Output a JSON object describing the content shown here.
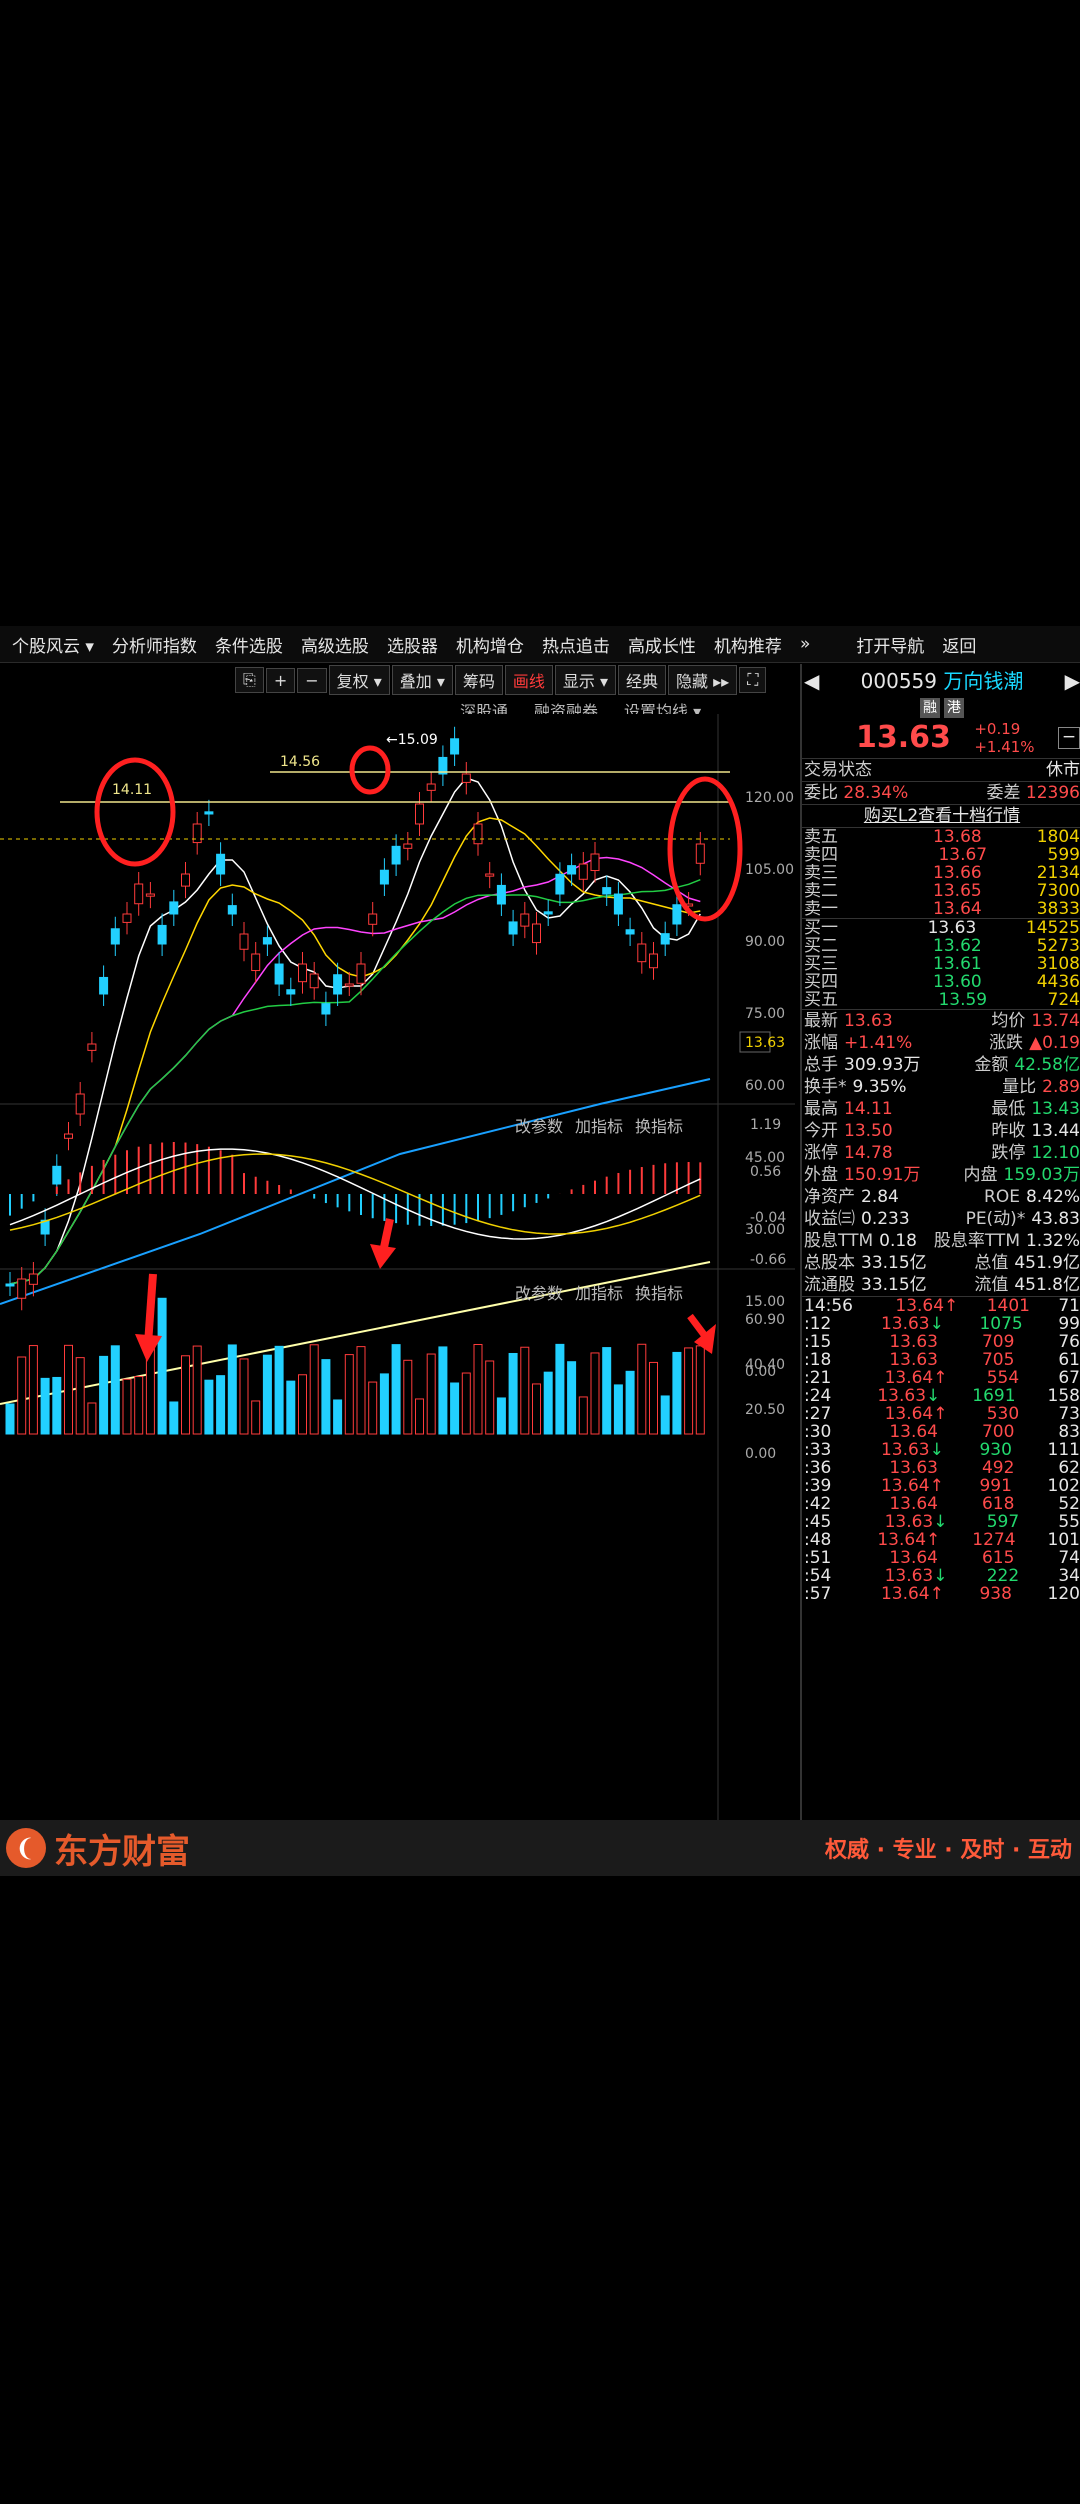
{
  "menu": [
    "个股风云 ▾",
    "分析师指数",
    "条件选股",
    "高级选股",
    "选股器",
    "机构增仓",
    "热点追击",
    "高成长性",
    "机构推荐",
    "»",
    "打开导航",
    "返回"
  ],
  "toolbar": {
    "undo": "⎘",
    "plus": "+",
    "minus": "−",
    "fuquan": "复权 ▾",
    "diejia": "叠加 ▾",
    "chouma": "筹码",
    "huaxian": "画线",
    "xianshi": "显示 ▾",
    "jingdian": "经典",
    "yincang": "隐藏 ▸▸",
    "fullscreen": "⛶"
  },
  "subinfo": [
    "深股通",
    "融资融券",
    "设置均线 ▾"
  ],
  "price_axis": [
    "120.00",
    "105.00",
    "90.00",
    "75.00",
    "60.00",
    "45.00",
    "30.00",
    "15.00",
    "0.00"
  ],
  "current_price_tag": "13.63",
  "annotations": {
    "high1": "14.11",
    "high2": "14.56",
    "high3": "←15.09"
  },
  "macd_axis": [
    "1.19",
    "0.56",
    "-0.04",
    "-0.66"
  ],
  "vol_axis": [
    "60.90",
    "40.40",
    "20.50",
    "0.00"
  ],
  "panel_labels": [
    "改参数",
    "加指标",
    "换指标"
  ],
  "stock": {
    "code": "000559",
    "name": "万向钱潮",
    "tags": [
      "融",
      "港"
    ],
    "price": "13.63",
    "change": "+0.19",
    "pct": "+1.41%"
  },
  "status": {
    "label": "交易状态",
    "value": "休市"
  },
  "weibi": {
    "l1": "委比",
    "v1": "28.34%",
    "l2": "委差",
    "v2": "12396"
  },
  "l2_link": "购买L2查看十档行情",
  "asks": [
    [
      "卖五",
      "13.68",
      "1804"
    ],
    [
      "卖四",
      "13.67",
      "599"
    ],
    [
      "卖三",
      "13.66",
      "2134"
    ],
    [
      "卖二",
      "13.65",
      "7300"
    ],
    [
      "卖一",
      "13.64",
      "3833"
    ]
  ],
  "bids": [
    [
      "买一",
      "13.63",
      "14525"
    ],
    [
      "买二",
      "13.62",
      "5273"
    ],
    [
      "买三",
      "13.61",
      "3108"
    ],
    [
      "买四",
      "13.60",
      "4436"
    ],
    [
      "买五",
      "13.59",
      "724"
    ]
  ],
  "quote": [
    [
      "最新",
      "13.63",
      "均价",
      "13.74"
    ],
    [
      "涨幅",
      "+1.41%",
      "涨跌",
      "▲0.19"
    ],
    [
      "总手",
      "309.93万",
      "金额",
      "42.58亿"
    ],
    [
      "换手*",
      "9.35%",
      "量比",
      "2.89"
    ],
    [
      "最高",
      "14.11",
      "最低",
      "13.43"
    ],
    [
      "今开",
      "13.50",
      "昨收",
      "13.44"
    ],
    [
      "涨停",
      "14.78",
      "跌停",
      "12.10"
    ],
    [
      "外盘",
      "150.91万",
      "内盘",
      "159.03万"
    ],
    [
      "净资产",
      "2.84",
      "ROE",
      "8.42%"
    ],
    [
      "收益㈢",
      "0.233",
      "PE(动)*",
      "43.83"
    ],
    [
      "股息TTM",
      "0.18",
      "股息率TTM",
      "1.32%"
    ],
    [
      "总股本",
      "33.15亿",
      "总值",
      "451.9亿"
    ],
    [
      "流通股",
      "33.15亿",
      "流值",
      "451.8亿"
    ]
  ],
  "ticks": [
    [
      "14:56",
      "13.64↑",
      "1401",
      "71"
    ],
    [
      ":12",
      "13.63↓",
      "1075",
      "99"
    ],
    [
      ":15",
      "13.63",
      "709",
      "76"
    ],
    [
      ":18",
      "13.63",
      "705",
      "61"
    ],
    [
      ":21",
      "13.64↑",
      "554",
      "67"
    ],
    [
      ":24",
      "13.63↓",
      "1691",
      "158"
    ],
    [
      ":27",
      "13.64↑",
      "530",
      "73"
    ],
    [
      ":30",
      "13.64",
      "700",
      "83"
    ],
    [
      ":33",
      "13.63↓",
      "930",
      "111"
    ],
    [
      ":36",
      "13.63",
      "492",
      "62"
    ],
    [
      ":39",
      "13.64↑",
      "991",
      "102"
    ],
    [
      ":42",
      "13.64",
      "618",
      "52"
    ],
    [
      ":45",
      "13.63↓",
      "597",
      "55"
    ],
    [
      ":48",
      "13.64↑",
      "1274",
      "101"
    ],
    [
      ":51",
      "13.64",
      "615",
      "74"
    ],
    [
      ":54",
      "13.63↓",
      "222",
      "34"
    ],
    [
      ":57",
      "13.64↑",
      "938",
      "120"
    ]
  ],
  "footer": {
    "brand": "东方财富",
    "slogan": "权威 · 专业 · 及时 · 互动"
  },
  "colors": {
    "up": "#ff3b3b",
    "down": "#22d0ff",
    "ma5": "#ffffff",
    "ma10": "#ffd700",
    "ma20": "#ff44ff",
    "ma30": "#22cc44",
    "ma60": "#19a0ff",
    "ma120": "#ffffaa"
  }
}
